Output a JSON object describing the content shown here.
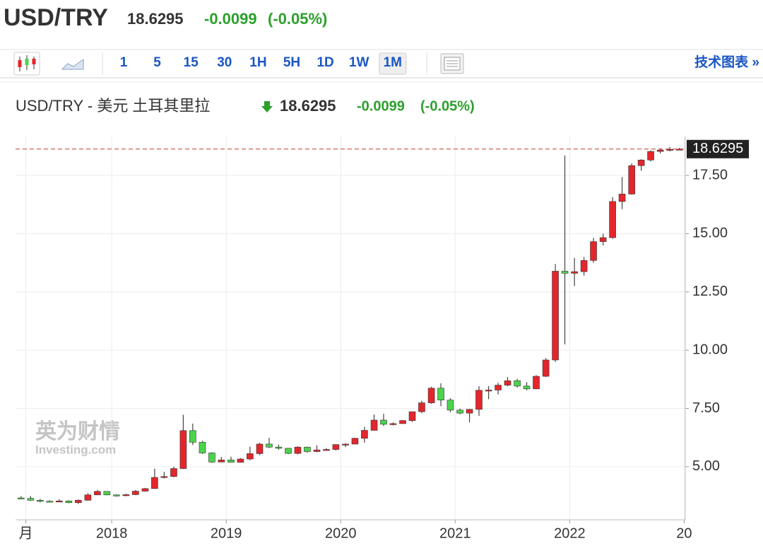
{
  "header": {
    "symbol": "USD/TRY",
    "price": "18.6295",
    "change": "-0.0099",
    "change_pct": "(-0.05%)"
  },
  "toolbar": {
    "intervals": [
      "1",
      "5",
      "15",
      "30",
      "1H",
      "5H",
      "1D",
      "1W",
      "1M"
    ],
    "active_interval": "1M",
    "link": "技术图表 »"
  },
  "watermark": {
    "brand": "英为财情",
    "site": "Investing.com"
  },
  "chart_data": {
    "type": "candlestick",
    "title": "USD/TRY - 美元 土耳其里拉",
    "title_price": "18.6295",
    "title_change": "-0.0099",
    "title_change_pct": "(-0.05%)",
    "last_price": 18.6295,
    "up_color": "#e3262c",
    "down_color": "#4bd44b",
    "wick_color": "#444444",
    "last_line_color": "#c0392b",
    "grid": true,
    "xlim": [
      2017.16,
      2023.01
    ],
    "xticks": [
      {
        "value": 2017.25,
        "label": "月"
      },
      2018,
      2019,
      2020,
      2021,
      2022,
      {
        "value": 2023,
        "label": "20"
      }
    ],
    "ylim": [
      2.72,
      19.17
    ],
    "yticks": [
      {
        "value": 5,
        "label": "5.00"
      },
      {
        "value": 7.5,
        "label": "7.50"
      },
      {
        "value": 10,
        "label": "10.00"
      },
      {
        "value": 12.5,
        "label": "12.50"
      },
      {
        "value": 15,
        "label": "15.00"
      },
      {
        "value": 17.5,
        "label": "17.50"
      }
    ],
    "x": [
      2017.208,
      2017.292,
      2017.375,
      2017.458,
      2017.542,
      2017.625,
      2017.708,
      2017.792,
      2017.875,
      2017.958,
      2018.042,
      2018.125,
      2018.208,
      2018.292,
      2018.375,
      2018.458,
      2018.542,
      2018.625,
      2018.708,
      2018.792,
      2018.875,
      2018.958,
      2019.042,
      2019.125,
      2019.208,
      2019.292,
      2019.375,
      2019.458,
      2019.542,
      2019.625,
      2019.708,
      2019.792,
      2019.875,
      2019.958,
      2020.042,
      2020.125,
      2020.208,
      2020.292,
      2020.375,
      2020.458,
      2020.542,
      2020.625,
      2020.708,
      2020.792,
      2020.875,
      2020.958,
      2021.042,
      2021.125,
      2021.208,
      2021.292,
      2021.375,
      2021.458,
      2021.542,
      2021.625,
      2021.708,
      2021.792,
      2021.875,
      2021.958,
      2022.042,
      2022.125,
      2022.208,
      2022.292,
      2022.375,
      2022.458,
      2022.542,
      2022.625,
      2022.708,
      2022.792,
      2022.875,
      2022.958
    ],
    "open": [
      3.66,
      3.64,
      3.56,
      3.52,
      3.51,
      3.53,
      3.46,
      3.56,
      3.79,
      3.94,
      3.79,
      3.77,
      3.8,
      3.95,
      4.06,
      4.54,
      4.58,
      4.92,
      6.55,
      6.05,
      5.59,
      5.2,
      5.29,
      5.19,
      5.33,
      5.56,
      5.97,
      5.84,
      5.79,
      5.57,
      5.84,
      5.65,
      5.72,
      5.74,
      5.95,
      5.97,
      6.22,
      6.56,
      7.0,
      6.82,
      6.85,
      6.98,
      7.36,
      7.74,
      8.37,
      7.86,
      7.43,
      7.3,
      7.46,
      8.28,
      8.29,
      8.5,
      8.69,
      8.46,
      8.34,
      8.88,
      9.58,
      13.39,
      13.3,
      13.37,
      13.85,
      14.66,
      14.83,
      16.38,
      16.7,
      17.92,
      18.16,
      18.53,
      18.59,
      18.62
    ],
    "high": [
      3.74,
      3.74,
      3.62,
      3.56,
      3.6,
      3.56,
      3.6,
      3.86,
      4.0,
      3.95,
      3.82,
      3.84,
      4.0,
      4.09,
      4.92,
      4.78,
      5.0,
      7.23,
      6.85,
      6.11,
      5.62,
      5.42,
      5.43,
      5.37,
      5.86,
      6.03,
      6.24,
      5.95,
      5.8,
      5.88,
      5.86,
      5.92,
      5.8,
      5.96,
      6.0,
      6.24,
      6.71,
      7.24,
      7.27,
      6.9,
      7.0,
      7.37,
      7.83,
      8.43,
      8.58,
      7.94,
      7.5,
      7.48,
      8.46,
      8.46,
      8.6,
      8.85,
      8.77,
      8.63,
      8.93,
      9.66,
      13.7,
      18.36,
      13.96,
      14.0,
      14.82,
      15.0,
      16.57,
      17.43,
      18.02,
      18.2,
      18.57,
      18.66,
      18.72,
      18.68
    ],
    "low": [
      3.6,
      3.54,
      3.47,
      3.48,
      3.49,
      3.43,
      3.4,
      3.55,
      3.78,
      3.77,
      3.72,
      3.73,
      3.78,
      3.93,
      4.05,
      4.49,
      4.55,
      4.9,
      5.93,
      5.55,
      5.17,
      5.19,
      5.18,
      5.17,
      5.28,
      5.5,
      5.8,
      5.73,
      5.54,
      5.53,
      5.6,
      5.62,
      5.68,
      5.7,
      5.84,
      5.96,
      6.03,
      6.55,
      6.75,
      6.77,
      6.84,
      6.92,
      7.3,
      7.7,
      7.6,
      7.34,
      7.25,
      6.9,
      7.18,
      7.9,
      8.1,
      8.45,
      8.39,
      8.28,
      8.33,
      8.85,
      9.5,
      10.25,
      12.75,
      13.2,
      13.75,
      14.5,
      14.78,
      16.05,
      16.68,
      17.7,
      18.1,
      18.44,
      18.53,
      18.58
    ],
    "close": [
      3.64,
      3.56,
      3.52,
      3.51,
      3.53,
      3.46,
      3.56,
      3.79,
      3.94,
      3.79,
      3.77,
      3.8,
      3.95,
      4.06,
      4.54,
      4.58,
      4.92,
      6.55,
      6.05,
      5.59,
      5.2,
      5.29,
      5.19,
      5.33,
      5.56,
      5.97,
      5.84,
      5.79,
      5.57,
      5.84,
      5.65,
      5.72,
      5.74,
      5.95,
      5.97,
      6.22,
      6.56,
      7.0,
      6.82,
      6.85,
      6.98,
      7.36,
      7.74,
      8.37,
      7.86,
      7.43,
      7.3,
      7.46,
      8.28,
      8.29,
      8.5,
      8.69,
      8.46,
      8.34,
      8.88,
      9.58,
      13.39,
      13.3,
      13.37,
      13.85,
      14.66,
      14.83,
      16.38,
      16.7,
      17.92,
      18.16,
      18.53,
      18.59,
      18.62,
      18.63
    ]
  }
}
